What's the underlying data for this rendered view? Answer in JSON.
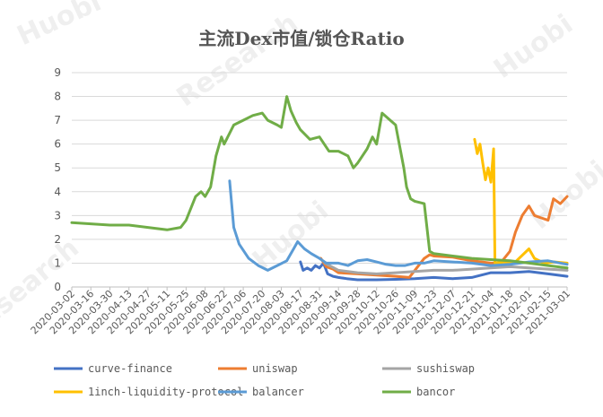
{
  "chart_data": {
    "type": "line",
    "title": "主流Dex市值/锁仓Ratio",
    "xlabel": "",
    "ylabel": "",
    "ylim": [
      0,
      9
    ],
    "yticks": [
      0,
      1,
      2,
      3,
      4,
      5,
      6,
      7,
      8,
      9
    ],
    "xlim": [
      "2020-03-02",
      "2021-03-01"
    ],
    "xticks": [
      "2020-03-02",
      "2020-03-16",
      "2020-03-30",
      "2020-04-13",
      "2020-04-27",
      "2020-05-11",
      "2020-05-25",
      "2020-06-08",
      "2020-06-22",
      "2020-07-06",
      "2020-07-20",
      "2020-08-03",
      "2020-08-17",
      "2020-08-31",
      "2020-09-14",
      "2020-09-28",
      "2020-10-12",
      "2020-10-26",
      "2020-11-09",
      "2020-11-23",
      "2020-12-07",
      "2020-12-21",
      "2021-01-04",
      "2021-01-18",
      "2021-02-01",
      "2021-02-15",
      "2021-03-01"
    ],
    "grid": "horizontal",
    "legend": "bottom",
    "watermark": {
      "texts": [
        "Huobi",
        "Research",
        "Huobi",
        "Research",
        "Huobi",
        "Huobi"
      ],
      "icon": "flame-logo-icon"
    },
    "series": [
      {
        "name": "curve-finance",
        "color": "#4472c4",
        "points": [
          [
            "2020-08-17",
            1.05
          ],
          [
            "2020-08-19",
            0.7
          ],
          [
            "2020-08-22",
            0.8
          ],
          [
            "2020-08-25",
            0.7
          ],
          [
            "2020-08-28",
            0.9
          ],
          [
            "2020-08-31",
            0.8
          ],
          [
            "2020-09-03",
            1.0
          ],
          [
            "2020-09-06",
            0.55
          ],
          [
            "2020-09-10",
            0.45
          ],
          [
            "2020-09-14",
            0.4
          ],
          [
            "2020-09-20",
            0.35
          ],
          [
            "2020-09-28",
            0.3
          ],
          [
            "2020-10-12",
            0.3
          ],
          [
            "2020-10-26",
            0.32
          ],
          [
            "2020-11-09",
            0.35
          ],
          [
            "2020-11-23",
            0.4
          ],
          [
            "2020-12-07",
            0.35
          ],
          [
            "2020-12-21",
            0.4
          ],
          [
            "2021-01-04",
            0.6
          ],
          [
            "2021-01-18",
            0.6
          ],
          [
            "2021-02-01",
            0.65
          ],
          [
            "2021-02-15",
            0.55
          ],
          [
            "2021-02-22",
            0.5
          ],
          [
            "2021-03-01",
            0.45
          ]
        ]
      },
      {
        "name": "uniswap",
        "color": "#ed7d31",
        "points": [
          [
            "2020-09-01",
            1.2
          ],
          [
            "2020-09-05",
            0.85
          ],
          [
            "2020-09-10",
            0.75
          ],
          [
            "2020-09-14",
            0.6
          ],
          [
            "2020-09-28",
            0.55
          ],
          [
            "2020-10-12",
            0.5
          ],
          [
            "2020-10-26",
            0.45
          ],
          [
            "2020-11-05",
            0.4
          ],
          [
            "2020-11-16",
            1.2
          ],
          [
            "2020-11-20",
            1.35
          ],
          [
            "2020-11-23",
            1.3
          ],
          [
            "2020-12-07",
            1.25
          ],
          [
            "2020-12-21",
            1.1
          ],
          [
            "2021-01-04",
            1.0
          ],
          [
            "2021-01-11",
            1.0
          ],
          [
            "2021-01-18",
            1.5
          ],
          [
            "2021-01-22",
            2.3
          ],
          [
            "2021-01-27",
            3.0
          ],
          [
            "2021-02-01",
            3.4
          ],
          [
            "2021-02-05",
            3.0
          ],
          [
            "2021-02-10",
            2.9
          ],
          [
            "2021-02-15",
            2.8
          ],
          [
            "2021-02-19",
            3.7
          ],
          [
            "2021-02-24",
            3.5
          ],
          [
            "2021-03-01",
            3.8
          ]
        ]
      },
      {
        "name": "sushiswap",
        "color": "#a5a5a5",
        "points": [
          [
            "2020-09-04",
            1.0
          ],
          [
            "2020-09-14",
            0.7
          ],
          [
            "2020-09-28",
            0.6
          ],
          [
            "2020-10-12",
            0.55
          ],
          [
            "2020-10-26",
            0.6
          ],
          [
            "2020-11-09",
            0.65
          ],
          [
            "2020-11-23",
            0.7
          ],
          [
            "2020-12-07",
            0.7
          ],
          [
            "2020-12-21",
            0.75
          ],
          [
            "2021-01-04",
            0.8
          ],
          [
            "2021-01-18",
            0.85
          ],
          [
            "2021-02-01",
            0.8
          ],
          [
            "2021-02-15",
            0.75
          ],
          [
            "2021-03-01",
            0.7
          ]
        ]
      },
      {
        "name": "1inch-liquidity-protocol",
        "color": "#ffc000",
        "points": [
          [
            "2020-12-23",
            6.2
          ],
          [
            "2020-12-25",
            5.6
          ],
          [
            "2020-12-27",
            6.0
          ],
          [
            "2020-12-29",
            5.2
          ],
          [
            "2020-12-31",
            4.5
          ],
          [
            "2021-01-02",
            5.0
          ],
          [
            "2021-01-04",
            4.4
          ],
          [
            "2021-01-06",
            5.8
          ],
          [
            "2021-01-07",
            1.0
          ],
          [
            "2021-01-14",
            1.05
          ],
          [
            "2021-01-21",
            1.0
          ],
          [
            "2021-02-01",
            1.6
          ],
          [
            "2021-02-05",
            1.2
          ],
          [
            "2021-02-12",
            1.0
          ],
          [
            "2021-02-20",
            1.05
          ],
          [
            "2021-03-01",
            1.0
          ]
        ]
      },
      {
        "name": "balancer",
        "color": "#5b9bd5",
        "points": [
          [
            "2020-06-26",
            4.45
          ],
          [
            "2020-06-29",
            2.5
          ],
          [
            "2020-07-03",
            1.8
          ],
          [
            "2020-07-10",
            1.2
          ],
          [
            "2020-07-17",
            0.9
          ],
          [
            "2020-07-24",
            0.7
          ],
          [
            "2020-07-31",
            0.9
          ],
          [
            "2020-08-07",
            1.1
          ],
          [
            "2020-08-12",
            1.6
          ],
          [
            "2020-08-15",
            1.9
          ],
          [
            "2020-08-20",
            1.6
          ],
          [
            "2020-08-25",
            1.4
          ],
          [
            "2020-08-31",
            1.2
          ],
          [
            "2020-09-05",
            1.0
          ],
          [
            "2020-09-14",
            1.0
          ],
          [
            "2020-09-21",
            0.9
          ],
          [
            "2020-09-28",
            1.1
          ],
          [
            "2020-10-05",
            1.15
          ],
          [
            "2020-10-12",
            1.05
          ],
          [
            "2020-10-19",
            0.95
          ],
          [
            "2020-10-26",
            0.9
          ],
          [
            "2020-11-02",
            0.9
          ],
          [
            "2020-11-09",
            1.0
          ],
          [
            "2020-11-16",
            1.0
          ],
          [
            "2020-11-23",
            1.1
          ],
          [
            "2020-12-07",
            1.05
          ],
          [
            "2020-12-21",
            1.0
          ],
          [
            "2021-01-04",
            0.9
          ],
          [
            "2021-01-18",
            0.95
          ],
          [
            "2021-02-01",
            1.05
          ],
          [
            "2021-02-15",
            1.1
          ],
          [
            "2021-03-01",
            0.95
          ]
        ]
      },
      {
        "name": "bancor",
        "color": "#70ad47",
        "points": [
          [
            "2020-03-02",
            2.7
          ],
          [
            "2020-03-16",
            2.65
          ],
          [
            "2020-03-30",
            2.6
          ],
          [
            "2020-04-13",
            2.6
          ],
          [
            "2020-04-27",
            2.5
          ],
          [
            "2020-05-11",
            2.4
          ],
          [
            "2020-05-21",
            2.5
          ],
          [
            "2020-05-25",
            2.8
          ],
          [
            "2020-06-01",
            3.8
          ],
          [
            "2020-06-05",
            4.0
          ],
          [
            "2020-06-08",
            3.8
          ],
          [
            "2020-06-12",
            4.2
          ],
          [
            "2020-06-16",
            5.5
          ],
          [
            "2020-06-20",
            6.3
          ],
          [
            "2020-06-22",
            6.0
          ],
          [
            "2020-06-29",
            6.8
          ],
          [
            "2020-07-06",
            7.0
          ],
          [
            "2020-07-13",
            7.2
          ],
          [
            "2020-07-20",
            7.3
          ],
          [
            "2020-07-24",
            7.0
          ],
          [
            "2020-07-31",
            6.8
          ],
          [
            "2020-08-03",
            6.7
          ],
          [
            "2020-08-07",
            8.0
          ],
          [
            "2020-08-10",
            7.4
          ],
          [
            "2020-08-14",
            6.9
          ],
          [
            "2020-08-17",
            6.6
          ],
          [
            "2020-08-24",
            6.2
          ],
          [
            "2020-08-31",
            6.3
          ],
          [
            "2020-09-07",
            5.7
          ],
          [
            "2020-09-14",
            5.7
          ],
          [
            "2020-09-21",
            5.5
          ],
          [
            "2020-09-25",
            5.0
          ],
          [
            "2020-09-28",
            5.2
          ],
          [
            "2020-10-05",
            5.8
          ],
          [
            "2020-10-09",
            6.3
          ],
          [
            "2020-10-12",
            6.0
          ],
          [
            "2020-10-16",
            7.3
          ],
          [
            "2020-10-22",
            7.0
          ],
          [
            "2020-10-26",
            6.8
          ],
          [
            "2020-11-01",
            5.0
          ],
          [
            "2020-11-03",
            4.2
          ],
          [
            "2020-11-06",
            3.7
          ],
          [
            "2020-11-09",
            3.6
          ],
          [
            "2020-11-16",
            3.5
          ],
          [
            "2020-11-20",
            1.5
          ],
          [
            "2020-11-23",
            1.4
          ],
          [
            "2020-12-07",
            1.3
          ],
          [
            "2020-12-21",
            1.2
          ],
          [
            "2021-01-04",
            1.15
          ],
          [
            "2021-01-18",
            1.1
          ],
          [
            "2021-02-01",
            1.0
          ],
          [
            "2021-02-15",
            0.9
          ],
          [
            "2021-03-01",
            0.8
          ]
        ]
      }
    ]
  }
}
